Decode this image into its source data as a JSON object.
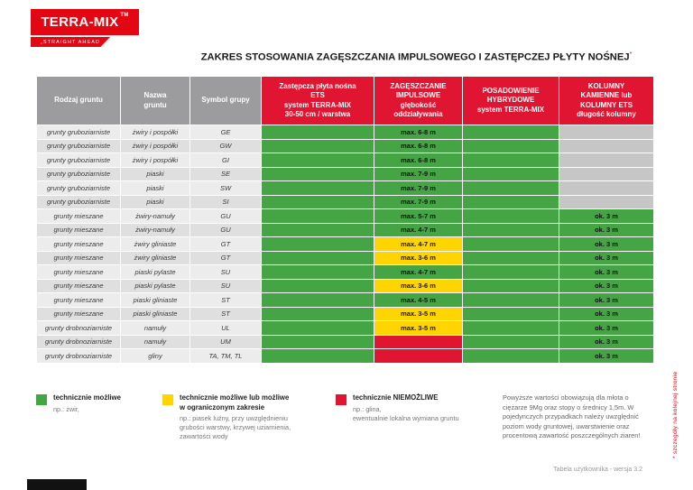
{
  "logo": {
    "brand": "TERRA-MIX",
    "tm": "TM",
    "tagline": "„STRAIGHT AHEAD"
  },
  "title": {
    "text": "ZAKRES STOSOWANIA ZAGĘSZCZANIA IMPULSOWEGO I ZASTĘPCZEJ PŁYTY NOŚNEJ",
    "mark": "*"
  },
  "table": {
    "headers": [
      "Rodzaj gruntu",
      "Nazwa\ngruntu",
      "Symbol grupy",
      "Zastępcza płyta nośna\nETS\nsystem TERRA-MIX\n30-50 cm / warstwa",
      "ZAGĘSZCZANIE\nIMPULSOWE\ngłębokość\noddziaływania",
      "POSADOWIENIE\nHYBRYDOWE\nsystem TERRA-MIX",
      "KOLUMNY\nKAMIENNE lub\nKOLUMNY ETS\ndługość kolumny"
    ],
    "rows": [
      {
        "rodzaj": "grunty gruboziarniste",
        "nazwa": "żwiry i pospółki",
        "symbol": "GE",
        "plyta": "green",
        "impuls": {
          "text": "max. 6-8 m",
          "color": "green"
        },
        "hybryda": "green",
        "kolumny": {
          "text": "",
          "color": "none"
        }
      },
      {
        "rodzaj": "grunty gruboziarniste",
        "nazwa": "żwiry i pospółki",
        "symbol": "GW",
        "plyta": "green",
        "impuls": {
          "text": "max. 6-8 m",
          "color": "green"
        },
        "hybryda": "green",
        "kolumny": {
          "text": "",
          "color": "none"
        }
      },
      {
        "rodzaj": "grunty gruboziarniste",
        "nazwa": "żwiry i pospółki",
        "symbol": "GI",
        "plyta": "green",
        "impuls": {
          "text": "max. 6-8 m",
          "color": "green"
        },
        "hybryda": "green",
        "kolumny": {
          "text": "",
          "color": "none"
        }
      },
      {
        "rodzaj": "grunty gruboziarniste",
        "nazwa": "piaski",
        "symbol": "SE",
        "plyta": "green",
        "impuls": {
          "text": "max. 7-9 m",
          "color": "green"
        },
        "hybryda": "green",
        "kolumny": {
          "text": "",
          "color": "none"
        }
      },
      {
        "rodzaj": "grunty gruboziarniste",
        "nazwa": "piaski",
        "symbol": "SW",
        "plyta": "green",
        "impuls": {
          "text": "max. 7-9 m",
          "color": "green"
        },
        "hybryda": "green",
        "kolumny": {
          "text": "",
          "color": "none"
        }
      },
      {
        "rodzaj": "grunty gruboziarniste",
        "nazwa": "piaski",
        "symbol": "SI",
        "plyta": "green",
        "impuls": {
          "text": "max. 7-9 m",
          "color": "green"
        },
        "hybryda": "green",
        "kolumny": {
          "text": "",
          "color": "none"
        }
      },
      {
        "rodzaj": "grunty mieszane",
        "nazwa": "żwiry-namuły",
        "symbol": "GU",
        "plyta": "green",
        "impuls": {
          "text": "max. 5-7 m",
          "color": "green"
        },
        "hybryda": "green",
        "kolumny": {
          "text": "ok. 3 m",
          "color": "green"
        }
      },
      {
        "rodzaj": "grunty mieszane",
        "nazwa": "żwiry-namuły",
        "symbol": "GU",
        "plyta": "green",
        "impuls": {
          "text": "max. 4-7 m",
          "color": "green"
        },
        "hybryda": "green",
        "kolumny": {
          "text": "ok. 3 m",
          "color": "green"
        }
      },
      {
        "rodzaj": "grunty mieszane",
        "nazwa": "żwiry gliniaste",
        "symbol": "GT",
        "plyta": "green",
        "impuls": {
          "text": "max. 4-7 m",
          "color": "yellow"
        },
        "hybryda": "green",
        "kolumny": {
          "text": "ok. 3 m",
          "color": "green"
        }
      },
      {
        "rodzaj": "grunty mieszane",
        "nazwa": "żwiry gliniaste",
        "symbol": "GT",
        "plyta": "green",
        "impuls": {
          "text": "max. 3-6 m",
          "color": "yellow"
        },
        "hybryda": "green",
        "kolumny": {
          "text": "ok. 3 m",
          "color": "green"
        }
      },
      {
        "rodzaj": "grunty mieszane",
        "nazwa": "piaski pylaste",
        "symbol": "SU",
        "plyta": "green",
        "impuls": {
          "text": "max. 4-7 m",
          "color": "green"
        },
        "hybryda": "green",
        "kolumny": {
          "text": "ok. 3 m",
          "color": "green"
        }
      },
      {
        "rodzaj": "grunty mieszane",
        "nazwa": "piaski pylaste",
        "symbol": "SU",
        "plyta": "green",
        "impuls": {
          "text": "max. 3-6 m",
          "color": "yellow"
        },
        "hybryda": "green",
        "kolumny": {
          "text": "ok. 3 m",
          "color": "green"
        }
      },
      {
        "rodzaj": "grunty mieszane",
        "nazwa": "piaski gliniaste",
        "symbol": "ST",
        "plyta": "green",
        "impuls": {
          "text": "max. 4-5 m",
          "color": "green"
        },
        "hybryda": "green",
        "kolumny": {
          "text": "ok. 3 m",
          "color": "green"
        }
      },
      {
        "rodzaj": "grunty mieszane",
        "nazwa": "piaski gliniaste",
        "symbol": "ST",
        "plyta": "green",
        "impuls": {
          "text": "max. 3-5 m",
          "color": "yellow"
        },
        "hybryda": "green",
        "kolumny": {
          "text": "ok. 3 m",
          "color": "green"
        }
      },
      {
        "rodzaj": "grunty drobnoziarniste",
        "nazwa": "namuły",
        "symbol": "UL",
        "plyta": "green",
        "impuls": {
          "text": "max. 3-5 m",
          "color": "yellow"
        },
        "hybryda": "green",
        "kolumny": {
          "text": "ok. 3 m",
          "color": "green"
        }
      },
      {
        "rodzaj": "grunty drobnoziarniste",
        "nazwa": "namuły",
        "symbol": "UM",
        "plyta": "green",
        "impuls": {
          "text": "",
          "color": "red"
        },
        "hybryda": "green",
        "kolumny": {
          "text": "ok. 3 m",
          "color": "green"
        }
      },
      {
        "rodzaj": "grunty drobnoziarniste",
        "nazwa": "gliny",
        "symbol": "TA, TM, TL",
        "plyta": "green",
        "impuls": {
          "text": "",
          "color": "red"
        },
        "hybryda": "green",
        "kolumny": {
          "text": "ok. 3 m",
          "color": "green"
        }
      }
    ]
  },
  "legend": [
    {
      "title": "technicznie możliwe",
      "desc": "np.: żwir,"
    },
    {
      "title": "technicznie możliwe lub możliwe\nw ograniczonym zakresie",
      "desc": "np.: piasek luźny, przy uwzględnieniu\ngrubości warstwy, krzywej uziarnienia,\nzawartości wody"
    },
    {
      "title": "technicznie NIEMOŻLIWE",
      "desc": "np.: glina,\newentualnie lokalna wymiana gruntu"
    }
  ],
  "note": "Powyższe wartości obowiązują dla młota o ciężarze 9Mg oraz stopy o średnicy 1,5m. W pojedynczych przypadkach należy uwzględnić poziom wody gruntowej, uwarstwienie oraz procentową zawartość poszczególnych ziaren!",
  "side_note": "* szczegóły na kolejnej stronie",
  "footer": "Tabela użytkownika - wersja 3.2",
  "colors": {
    "brand_red": "#E30613",
    "table_red": "#DF1532",
    "green": "#45A545",
    "yellow": "#FFD400",
    "header_gray": "#9C9C9E",
    "na_gray": "#C6C6C6"
  }
}
